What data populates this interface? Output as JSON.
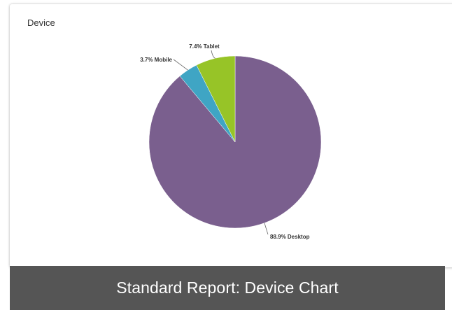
{
  "card": {
    "title": "Device"
  },
  "chart_data": {
    "type": "pie",
    "title": "Device",
    "slices": [
      {
        "name": "Desktop",
        "value": 88.9,
        "label": "88.9% Desktop",
        "color": "#7a5f8e"
      },
      {
        "name": "Mobile",
        "value": 3.7,
        "label": "3.7% Mobile",
        "color": "#3fa5c4"
      },
      {
        "name": "Tablet",
        "value": 7.4,
        "label": "7.4% Tablet",
        "color": "#97c427"
      }
    ]
  },
  "caption": {
    "text": "Standard Report: Device Chart"
  },
  "colors": {
    "caption_background": "#555555",
    "caption_text": "#ffffff"
  }
}
